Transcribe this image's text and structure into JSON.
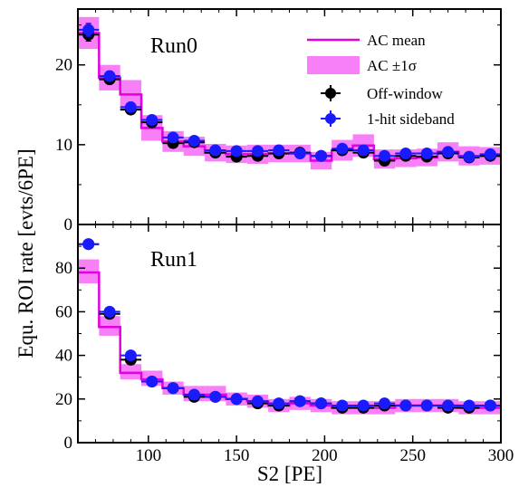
{
  "chart_data": [
    {
      "type": "line",
      "panel_label": "Run0",
      "xlim": [
        60,
        300
      ],
      "ylim": [
        0,
        27
      ],
      "yticks": [
        "0",
        "10",
        "20"
      ],
      "x_bins": [
        60,
        72,
        84,
        96,
        108,
        120,
        132,
        144,
        156,
        168,
        180,
        192,
        204,
        216,
        228,
        240,
        252,
        264,
        276,
        288,
        300
      ],
      "x": [
        66,
        78,
        90,
        102,
        114,
        126,
        138,
        150,
        162,
        174,
        186,
        198,
        210,
        222,
        234,
        246,
        258,
        270,
        282,
        294
      ],
      "series": [
        {
          "name": "AC mean",
          "values": [
            24.0,
            18.4,
            16.3,
            12.1,
            10.4,
            9.8,
            9.0,
            8.8,
            8.8,
            8.9,
            8.9,
            8.0,
            9.3,
            9.9,
            8.2,
            8.3,
            8.4,
            9.1,
            8.6,
            8.6
          ]
        },
        {
          "name": "AC ±1σ",
          "lower": [
            22.0,
            16.8,
            14.5,
            10.5,
            9.1,
            8.6,
            7.9,
            7.7,
            7.6,
            7.8,
            7.8,
            6.9,
            8.0,
            8.5,
            7.0,
            7.2,
            7.3,
            7.9,
            7.4,
            7.5
          ],
          "upper": [
            26.0,
            20.0,
            18.1,
            13.7,
            11.7,
            11.0,
            10.1,
            9.9,
            10.0,
            10.0,
            10.0,
            9.1,
            10.6,
            11.3,
            9.4,
            9.4,
            9.5,
            10.3,
            9.8,
            9.7
          ]
        },
        {
          "name": "Off-window",
          "values": [
            23.8,
            18.2,
            14.4,
            12.8,
            10.2,
            10.3,
            9.0,
            8.5,
            8.6,
            8.9,
            9.0,
            8.6,
            9.3,
            9.0,
            8.0,
            8.6,
            8.5,
            8.9,
            8.4,
            8.6
          ],
          "err": [
            0.8,
            0.6,
            0.5,
            0.5,
            0.5,
            0.4,
            0.4,
            0.4,
            0.4,
            0.4,
            0.4,
            0.4,
            0.4,
            0.4,
            0.4,
            0.4,
            0.4,
            0.4,
            0.4,
            0.4
          ]
        },
        {
          "name": "1-hit sideband",
          "values": [
            24.4,
            18.6,
            14.7,
            13.1,
            10.9,
            10.5,
            9.3,
            9.2,
            9.2,
            9.3,
            8.9,
            8.6,
            9.5,
            9.3,
            8.6,
            8.9,
            8.9,
            9.1,
            8.5,
            8.8
          ],
          "err": [
            0.8,
            0.6,
            0.5,
            0.5,
            0.5,
            0.4,
            0.4,
            0.4,
            0.4,
            0.4,
            0.4,
            0.4,
            0.4,
            0.4,
            0.4,
            0.4,
            0.4,
            0.4,
            0.4,
            0.4
          ]
        }
      ]
    },
    {
      "type": "line",
      "panel_label": "Run1",
      "xlim": [
        60,
        300
      ],
      "ylim": [
        0,
        100
      ],
      "yticks": [
        "0",
        "20",
        "40",
        "60",
        "80"
      ],
      "xticks": [
        "100",
        "150",
        "200",
        "250",
        "300"
      ],
      "xlabel": "S2 [PE]",
      "x_bins": [
        60,
        72,
        84,
        96,
        108,
        120,
        132,
        144,
        156,
        168,
        180,
        192,
        204,
        216,
        228,
        240,
        252,
        264,
        276,
        288,
        300
      ],
      "x": [
        66,
        78,
        90,
        102,
        114,
        126,
        138,
        150,
        162,
        174,
        186,
        198,
        210,
        222,
        234,
        246,
        258,
        270,
        282,
        294
      ],
      "series": [
        {
          "name": "AC mean",
          "values": [
            78,
            53,
            32,
            29,
            25,
            22,
            22,
            20,
            19,
            17,
            18,
            17,
            16,
            16,
            16,
            17,
            17,
            17,
            16,
            16
          ]
        },
        {
          "name": "AC ±1σ",
          "lower": [
            73,
            49,
            29,
            26,
            22,
            19,
            19,
            17,
            16,
            14,
            15,
            14,
            13,
            13,
            13,
            14,
            14,
            14,
            13,
            13
          ],
          "upper": [
            84,
            58,
            36,
            33,
            28,
            26,
            26,
            23,
            22,
            20,
            21,
            20,
            19,
            19,
            19,
            20,
            20,
            20,
            19,
            19
          ]
        },
        {
          "name": "Off-window",
          "values": [
            91,
            59,
            38,
            28,
            25,
            21,
            21,
            20,
            18,
            17,
            19,
            18,
            16,
            16,
            17,
            17,
            17,
            16,
            16,
            17
          ],
          "err": [
            2.0,
            1.5,
            1.3,
            1.2,
            1.1,
            1.0,
            1.0,
            1.0,
            1.0,
            1.0,
            1.0,
            1.0,
            1.0,
            1.0,
            1.0,
            1.0,
            1.0,
            1.0,
            1.0,
            1.0
          ]
        },
        {
          "name": "1-hit sideband",
          "values": [
            91,
            60,
            40,
            28,
            25,
            22,
            21,
            20,
            19,
            18,
            19,
            18,
            17,
            17,
            18,
            17,
            17,
            17,
            17,
            17
          ],
          "err": [
            2.0,
            1.5,
            1.3,
            1.2,
            1.1,
            1.0,
            1.0,
            1.0,
            1.0,
            1.0,
            1.0,
            1.0,
            1.0,
            1.0,
            1.0,
            1.0,
            1.0,
            1.0,
            1.0,
            1.0
          ]
        }
      ]
    }
  ],
  "ylabel": "Equ. ROI rate [evts/6PE]",
  "legend": {
    "position": "top-right of upper panel",
    "entries": [
      {
        "label": "AC mean",
        "style": "line",
        "color": "#e000e0"
      },
      {
        "label": "AC ±1σ",
        "style": "band",
        "color": "#f77ff7"
      },
      {
        "label": "Off-window",
        "style": "errorbar",
        "color": "#000000"
      },
      {
        "label": "1-hit sideband",
        "style": "errorbar",
        "color": "#0000ff"
      }
    ]
  },
  "colors": {
    "ac_mean": "#e000e0",
    "ac_band": "#f77ff7",
    "off_window": "#000000",
    "sideband": "#1a1aff"
  }
}
